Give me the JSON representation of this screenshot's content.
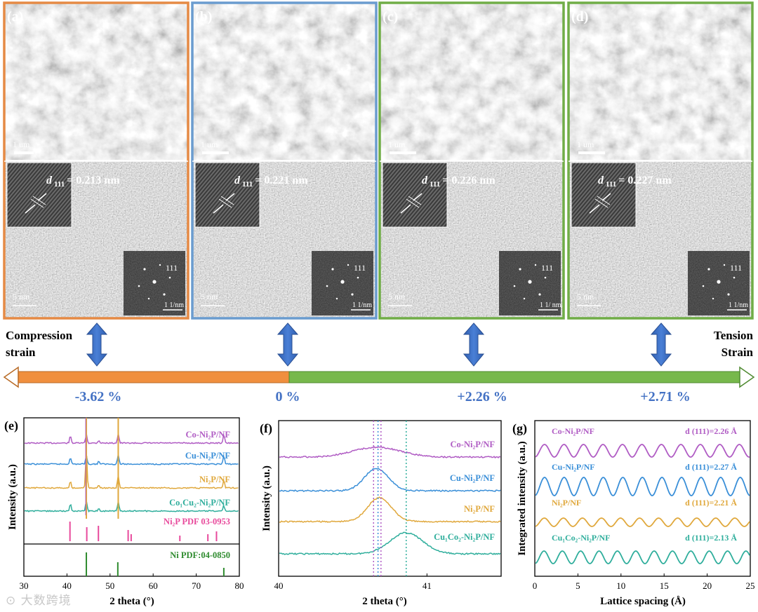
{
  "panels_top": [
    {
      "label": "(a)",
      "d_text": "= 0.213 nm",
      "scale_sem": "1 um",
      "scale_tem": "5 nm",
      "fft_hkl": "111",
      "fft_scale": "1 1/nm",
      "border": "#e58a45",
      "strain": "-3.62 %"
    },
    {
      "label": "(b)",
      "d_text": "= 0.221 nm",
      "scale_sem": "1 um",
      "scale_tem": "5 nm",
      "fft_hkl": "111",
      "fft_scale": "1 1/nm",
      "border": "#6a9ccf",
      "strain": "0 %"
    },
    {
      "label": "(c)",
      "d_text": "= 0.226 nm",
      "scale_sem": "1 um",
      "scale_tem": "5 nm",
      "fft_hkl": "111",
      "fft_scale": "1 1/ nm",
      "border": "#70ad47",
      "strain": "+2.26 %"
    },
    {
      "label": "(d)",
      "d_text": "= 0.227 nm",
      "scale_sem": "1 um",
      "scale_tem": "5 nm",
      "fft_hkl": "111",
      "fft_scale": "1 1/nm",
      "border": "#70ad47",
      "strain": "+2.71 %"
    }
  ],
  "d_symbol": "d",
  "d_sub": "111",
  "strain_axis": {
    "left_line1": "Compression",
    "left_line2": "strain",
    "right_line1": "Tension",
    "right_line2": "Strain",
    "left_color": "#f08f3e",
    "right_color": "#77b84c",
    "label_color": "#4472c4"
  },
  "panel_e": {
    "label": "(e)",
    "xlabel": "2 theta (°)",
    "ylabel": "Intensity (a.u.)",
    "ref1": "Ni₂P PDF 03-0953",
    "ref2": "Ni PDF:04-0850",
    "ticks": [
      "30",
      "40",
      "50",
      "60",
      "70",
      "80"
    ]
  },
  "panel_f": {
    "label": "(f)",
    "xlabel": "2 theta (°)",
    "ylabel": "Intensity (a.u.)",
    "ticks": [
      "40",
      "41"
    ]
  },
  "panel_g": {
    "label": "(g)",
    "xlabel": "Lattice spacing (Å)",
    "ylabel": "Integrated intensity (a.u.)",
    "ticks": [
      "0",
      "5",
      "10",
      "15",
      "20",
      "25"
    ]
  },
  "series": [
    {
      "name": "Co-Ni₂P/NF",
      "color": "#b05cc4",
      "d_label": "d (111)=2.26  Å"
    },
    {
      "name": "Cu-Ni₂P/NF",
      "color": "#3a8fd8",
      "d_label": "d (111)=2.27 Å"
    },
    {
      "name": "Ni₂P/NF",
      "color": "#e0a83c",
      "d_label": "d (111)=2.21 Å"
    },
    {
      "name": "Co₁Cu₂-Ni₂P/NF",
      "name_f": "Cu₁Co₂-Ni₂P/NF",
      "name_g": "Cu₁Co₂-Ni₂P/NF",
      "color": "#2fae9c",
      "d_label": "d (111)=2.13  Å"
    }
  ],
  "chart_data": [
    {
      "type": "line",
      "title": "",
      "xlabel": "2 theta (°)",
      "ylabel": "Intensity (a.u.)",
      "xlim": [
        30,
        80
      ],
      "peaks_x": [
        40.8,
        44.5,
        47.4,
        51.9,
        76.4
      ],
      "series": [
        {
          "name": "Co-Ni₂P/NF"
        },
        {
          "name": "Cu-Ni₂P/NF"
        },
        {
          "name": "Ni₂P/NF"
        },
        {
          "name": "Co₁Cu₂-Ni₂P/NF"
        }
      ],
      "ref_Ni2P": [
        40.7,
        44.6,
        47.3,
        54.2,
        54.9,
        66.2,
        72.7,
        74.7
      ],
      "ref_Ni": [
        44.5,
        51.8,
        76.4
      ]
    },
    {
      "type": "line",
      "title": "",
      "xlabel": "2 theta (°)",
      "ylabel": "Intensity (a.u.)",
      "xlim": [
        40,
        41.5
      ],
      "peak_centers": [
        40.66,
        40.66,
        40.68,
        40.86
      ],
      "dotted_lines": [
        40.64,
        40.67,
        40.69,
        40.86
      ]
    },
    {
      "type": "line",
      "title": "",
      "xlabel": "Lattice spacing (Å)",
      "ylabel": "Integrated intensity (a.u.)",
      "xlim": [
        0,
        25
      ],
      "periods": [
        2.26,
        2.27,
        2.21,
        2.13
      ]
    }
  ]
}
